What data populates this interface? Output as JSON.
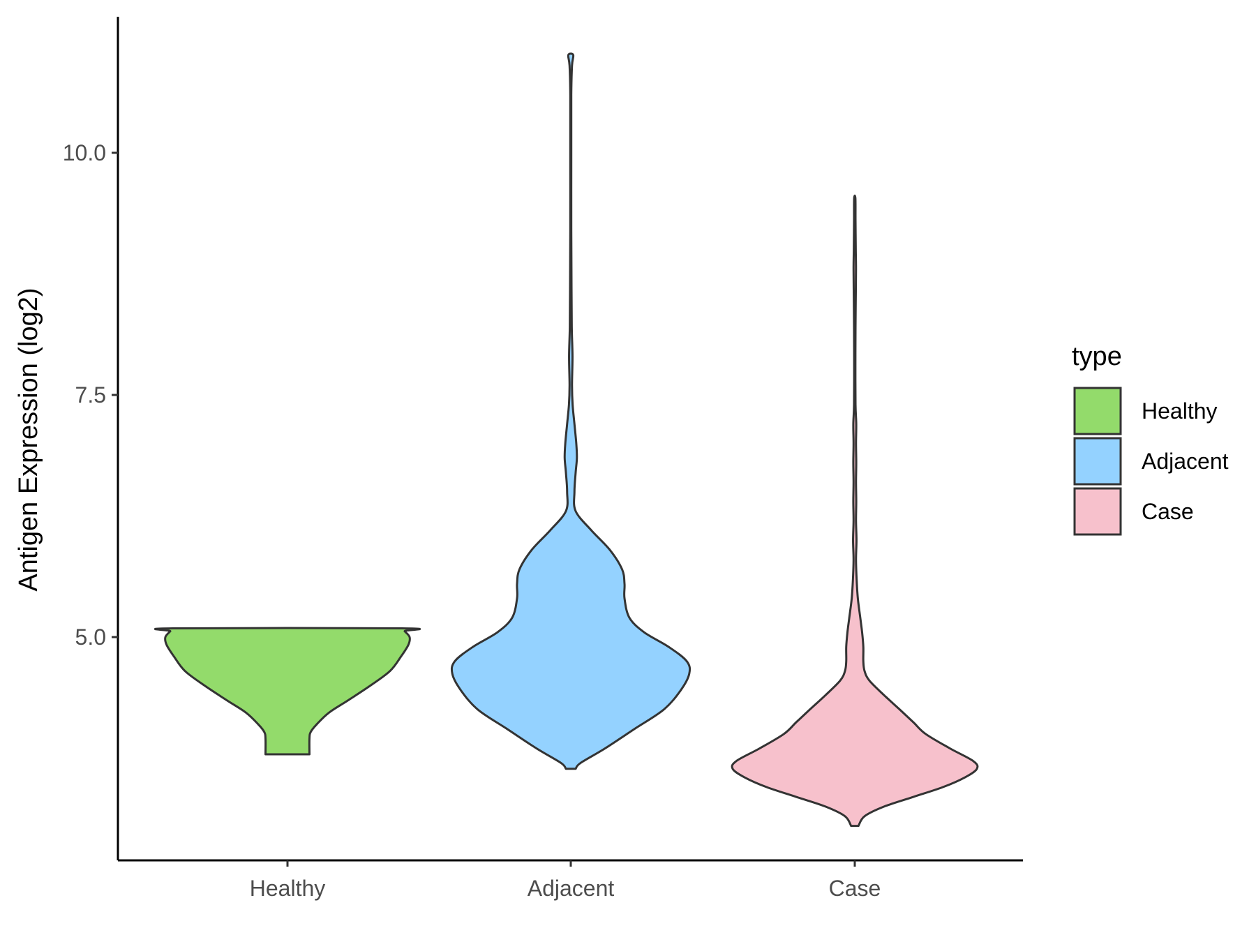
{
  "chart_data": {
    "type": "violin",
    "title": "",
    "xlabel": "",
    "ylabel": "Antigen Expression (log2)",
    "categories": [
      "Healthy",
      "Adjacent",
      "Case"
    ],
    "y_ticks": [
      5.0,
      7.5,
      10.0
    ],
    "y_tick_labels": [
      "5.0",
      "7.5",
      "10.0"
    ],
    "ylim": [
      2.65,
      11.4
    ],
    "grid": false,
    "legend": {
      "title": "type",
      "position": "right",
      "items": [
        "Healthy",
        "Adjacent",
        "Case"
      ]
    },
    "series": [
      {
        "name": "Healthy",
        "color": "#93DB6B",
        "min": 3.79,
        "max": 5.09,
        "profile": [
          [
            3.79,
            0.18
          ],
          [
            3.95,
            0.18
          ],
          [
            4.02,
            0.19
          ],
          [
            4.1,
            0.24
          ],
          [
            4.22,
            0.34
          ],
          [
            4.35,
            0.5
          ],
          [
            4.5,
            0.68
          ],
          [
            4.65,
            0.84
          ],
          [
            4.8,
            0.93
          ],
          [
            4.92,
            0.99
          ],
          [
            5.0,
            1.0
          ],
          [
            5.06,
            0.96
          ],
          [
            5.09,
            0.94
          ]
        ]
      },
      {
        "name": "Adjacent",
        "color": "#94D2FF",
        "min": 3.64,
        "max": 11.01,
        "profile": [
          [
            3.64,
            0.04
          ],
          [
            3.7,
            0.08
          ],
          [
            3.85,
            0.28
          ],
          [
            4.05,
            0.52
          ],
          [
            4.25,
            0.76
          ],
          [
            4.45,
            0.9
          ],
          [
            4.62,
            0.97
          ],
          [
            4.75,
            0.95
          ],
          [
            4.9,
            0.8
          ],
          [
            5.05,
            0.6
          ],
          [
            5.2,
            0.48
          ],
          [
            5.4,
            0.44
          ],
          [
            5.55,
            0.44
          ],
          [
            5.7,
            0.42
          ],
          [
            5.9,
            0.32
          ],
          [
            6.1,
            0.17
          ],
          [
            6.3,
            0.04
          ],
          [
            6.5,
            0.03
          ],
          [
            6.7,
            0.04
          ],
          [
            6.85,
            0.05
          ],
          [
            7.0,
            0.045
          ],
          [
            7.2,
            0.03
          ],
          [
            7.4,
            0.015
          ],
          [
            7.6,
            0.01
          ],
          [
            7.9,
            0.014
          ],
          [
            8.2,
            0.008
          ],
          [
            8.6,
            0.006
          ],
          [
            9.2,
            0.004
          ],
          [
            10.0,
            0.004
          ],
          [
            10.6,
            0.004
          ],
          [
            10.9,
            0.01
          ],
          [
            11.01,
            0.02
          ]
        ]
      },
      {
        "name": "Case",
        "color": "#F7C1CC",
        "min": 3.05,
        "max": 9.53,
        "profile": [
          [
            3.05,
            0.03
          ],
          [
            3.15,
            0.08
          ],
          [
            3.25,
            0.24
          ],
          [
            3.35,
            0.48
          ],
          [
            3.45,
            0.72
          ],
          [
            3.55,
            0.9
          ],
          [
            3.64,
            1.0
          ],
          [
            3.72,
            0.97
          ],
          [
            3.85,
            0.78
          ],
          [
            4.0,
            0.58
          ],
          [
            4.12,
            0.48
          ],
          [
            4.25,
            0.37
          ],
          [
            4.4,
            0.24
          ],
          [
            4.55,
            0.12
          ],
          [
            4.65,
            0.08
          ],
          [
            4.75,
            0.07
          ],
          [
            4.9,
            0.07
          ],
          [
            5.05,
            0.06
          ],
          [
            5.2,
            0.045
          ],
          [
            5.4,
            0.025
          ],
          [
            5.6,
            0.015
          ],
          [
            5.8,
            0.01
          ],
          [
            6.0,
            0.014
          ],
          [
            6.2,
            0.01
          ],
          [
            6.4,
            0.012
          ],
          [
            6.6,
            0.01
          ],
          [
            6.8,
            0.012
          ],
          [
            7.0,
            0.01
          ],
          [
            7.2,
            0.012
          ],
          [
            7.4,
            0.006
          ],
          [
            7.8,
            0.005
          ],
          [
            8.2,
            0.006
          ],
          [
            8.5,
            0.008
          ],
          [
            8.8,
            0.01
          ],
          [
            9.0,
            0.008
          ],
          [
            9.3,
            0.006
          ],
          [
            9.53,
            0.005
          ]
        ]
      }
    ]
  }
}
